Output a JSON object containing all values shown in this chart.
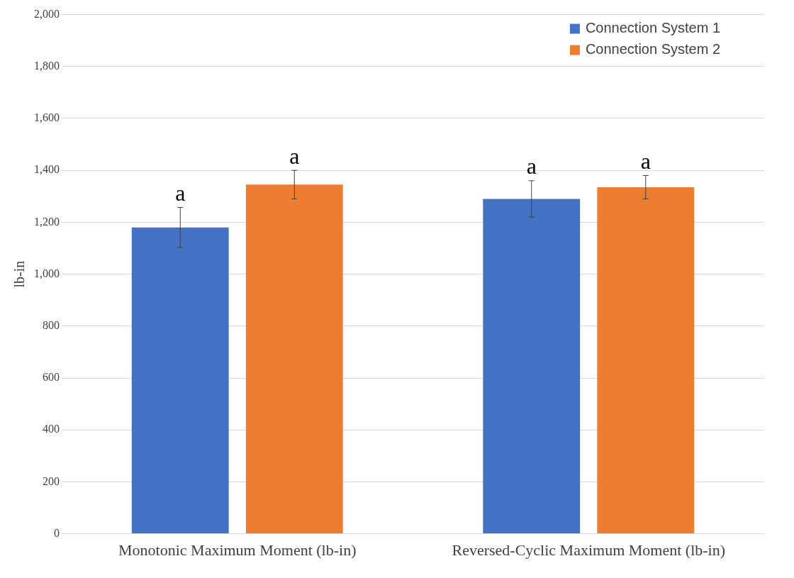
{
  "chart_data": {
    "type": "bar",
    "ylabel": "lb-in",
    "categories": [
      "Monotonic Maximum Moment (lb-in)",
      "Reversed-Cyclic Maximum Moment (lb-in)"
    ],
    "series": [
      {
        "name": "Connection System 1",
        "color": "#4472c4",
        "values": [
          1180,
          1290
        ],
        "errors": [
          77,
          70
        ]
      },
      {
        "name": "Connection System 2",
        "color": "#ed7d31",
        "values": [
          1345,
          1335
        ],
        "errors": [
          55,
          45
        ]
      }
    ],
    "ylim": [
      0,
      2000
    ],
    "yticks": [
      0,
      200,
      400,
      600,
      800,
      {
        "value": 1000,
        "label": "1,000"
      },
      {
        "value": 1200,
        "label": "1,200"
      },
      {
        "value": 1400,
        "label": "1,400"
      },
      {
        "value": 1600,
        "label": "1,600"
      },
      {
        "value": 1800,
        "label": "1,800"
      },
      {
        "value": 2000,
        "label": "2,000"
      }
    ],
    "grid": "y",
    "legend": "top right",
    "annotations": [
      "a",
      "a",
      "a",
      "a"
    ]
  }
}
